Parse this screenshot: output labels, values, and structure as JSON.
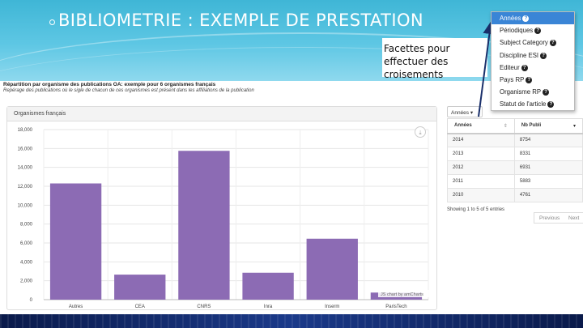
{
  "slide": {
    "title": "BIBLIOMETRIE : EXEMPLE DE PRESTATION",
    "note": "Facettes pour effectuer des croisements"
  },
  "report": {
    "title": "Répartition par organisme des publications OA: exemple pour 6 organismes français",
    "subtitle": "Repérage des publications où le sigle de chacun de ces organismes est présent dans les affiliations de la publication"
  },
  "chart_panel": {
    "header": "Organismes français",
    "download_icon": "download-icon",
    "credit": "JS chart by amCharts"
  },
  "chart_data": {
    "type": "bar",
    "categories": [
      "Autres",
      "CEA",
      "CNRS",
      "Inra",
      "Inserm",
      "ParisTech"
    ],
    "values": [
      12300,
      2650,
      15750,
      2850,
      6450,
      750
    ],
    "ylim": [
      0,
      18000
    ],
    "yticks": [
      "0",
      "2,000",
      "4,000",
      "6,000",
      "8,000",
      "10,000",
      "12,000",
      "14,000",
      "16,000",
      "18,000"
    ],
    "ytick_values": [
      0,
      2000,
      4000,
      6000,
      8000,
      10000,
      12000,
      14000,
      16000,
      18000
    ],
    "title": "",
    "xlabel": "",
    "ylabel": "",
    "grid": true,
    "bar_color": "#8c6bb4"
  },
  "table": {
    "filter_button": "Années ▾",
    "columns": [
      "Années",
      "Nb Publi"
    ],
    "rows": [
      [
        "2014",
        "8754"
      ],
      [
        "2013",
        "8331"
      ],
      [
        "2012",
        "6931"
      ],
      [
        "2011",
        "5883"
      ],
      [
        "2010",
        "4761"
      ]
    ],
    "info": "Showing 1 to 5 of 5 entries",
    "prev": "Previous",
    "next": "Next"
  },
  "dropdown": {
    "items": [
      "Années",
      "Périodiques",
      "Subject Category",
      "Discipline ESI",
      "Editeur",
      "Pays RP",
      "Organisme RP",
      "Statut de l'article"
    ],
    "selected_index": 0,
    "selected_color": "#3a85d6"
  },
  "colors": {
    "banner": "#3fb6d6",
    "arrow": "#1a2f6a"
  }
}
